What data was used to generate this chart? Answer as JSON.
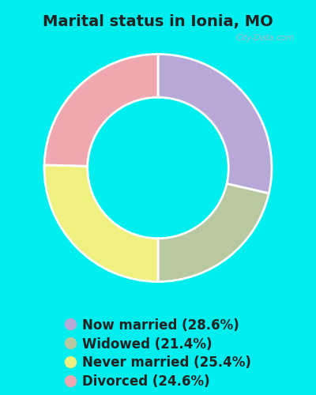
{
  "title": "Marital status in Ionia, MO",
  "slices": [
    28.6,
    21.4,
    25.4,
    24.6
  ],
  "colors": [
    "#b8a8d8",
    "#b8c8a0",
    "#f0f080",
    "#f0a8b0"
  ],
  "labels": [
    "Now married (28.6%)",
    "Widowed (21.4%)",
    "Never married (25.4%)",
    "Divorced (24.6%)"
  ],
  "legend_colors": [
    "#b8a8d8",
    "#b8c8a0",
    "#f0f080",
    "#f0a8b0"
  ],
  "background_outer": "#00eeee",
  "background_chart": "#ddeedd",
  "watermark": "City-Data.com",
  "title_fontsize": 14,
  "legend_fontsize": 12,
  "donut_width": 0.38
}
